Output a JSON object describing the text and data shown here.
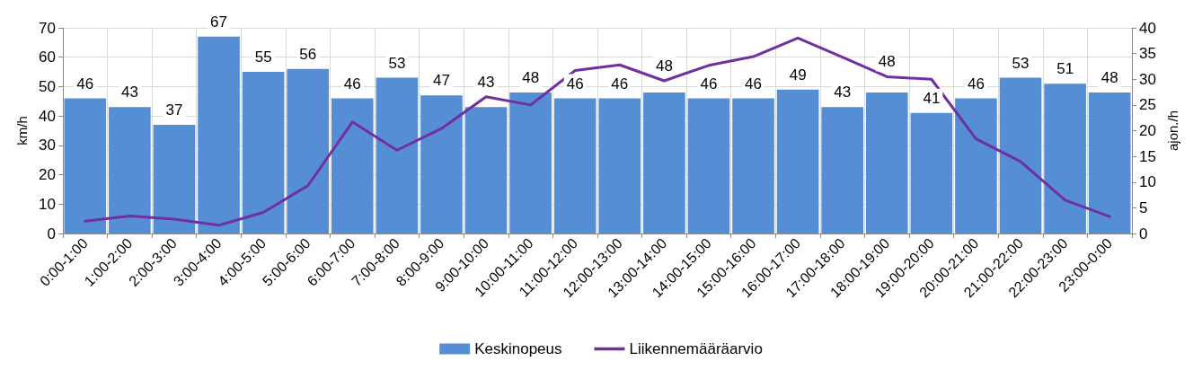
{
  "chart_data": {
    "type": "bar",
    "categories": [
      "0:00-1:00",
      "1:00-2:00",
      "2:00-3:00",
      "3:00-4:00",
      "4:00-5:00",
      "5:00-6:00",
      "6:00-7:00",
      "7:00-8:00",
      "8:00-9:00",
      "9:00-10:00",
      "10:00-11:00",
      "11:00-12:00",
      "12:00-13:00",
      "13:00-14:00",
      "14:00-15:00",
      "15:00-16:00",
      "16:00-17:00",
      "17:00-18:00",
      "18:00-19:00",
      "19:00-20:00",
      "20:00-21:00",
      "21:00-22:00",
      "22:00-23:00",
      "23:00-0:00"
    ],
    "series": [
      {
        "name": "Keskinopeus",
        "type": "bar",
        "color": "#558ed5",
        "data_labels": true,
        "values": [
          46,
          43,
          37,
          67,
          55,
          56,
          46,
          53,
          47,
          43,
          48,
          46,
          46,
          48,
          46,
          46,
          49,
          43,
          48,
          41,
          46,
          53,
          51,
          48
        ]
      },
      {
        "name": "Liikennemääräarvio",
        "type": "line",
        "axis": "y2",
        "color": "#7030a0",
        "marker": "none",
        "line_style": "solid",
        "values": [
          2.4,
          3.4,
          2.8,
          1.6,
          4.1,
          9.3,
          21.7,
          16.2,
          20.4,
          26.6,
          25.0,
          31.7,
          32.8,
          29.7,
          32.7,
          34.4,
          38.0,
          34.3,
          30.5,
          30.0,
          18.4,
          14.0,
          6.5,
          3.3
        ]
      }
    ],
    "ylabel": "km/h",
    "y2label": "ajon./h",
    "ylim": [
      0,
      70
    ],
    "yticks": [
      0,
      10,
      20,
      30,
      40,
      50,
      60,
      70
    ],
    "y2lim": [
      0,
      40
    ],
    "y2ticks": [
      0,
      5,
      10,
      15,
      20,
      25,
      30,
      35,
      40
    ],
    "grid": true,
    "legend": "bottom"
  }
}
